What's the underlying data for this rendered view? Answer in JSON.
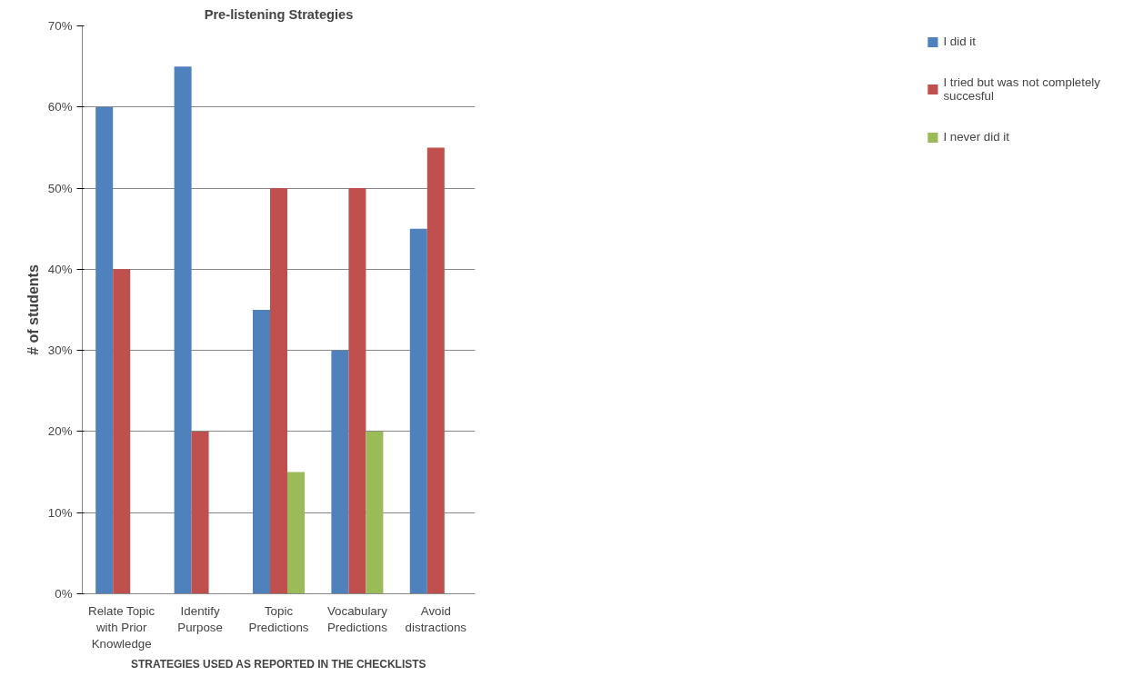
{
  "chart_data": {
    "type": "bar",
    "title": "Pre-listening Strategies",
    "xlabel": "STRATEGIES USED AS REPORTED IN THE CHECKLISTS",
    "ylabel": "# of students",
    "categories": [
      "Relate Topic with Prior Knowledge",
      "Identify Purpose",
      "Topic Predictions",
      "Vocabulary Predictions",
      "Avoid distractions"
    ],
    "series": [
      {
        "name": "I did it",
        "color": "#4f81bd",
        "values": [
          60,
          65,
          35,
          30,
          45
        ]
      },
      {
        "name": "I tried but was not completely succesful",
        "color": "#c0504d",
        "values": [
          40,
          20,
          50,
          50,
          55
        ]
      },
      {
        "name": "I never did it",
        "color": "#9bbb59",
        "values": [
          null,
          null,
          15,
          20,
          null
        ]
      }
    ],
    "ylim": [
      0,
      70
    ],
    "yticks": [
      {
        "value": 0,
        "label": "0%"
      },
      {
        "value": 10,
        "label": "10%"
      },
      {
        "value": 20,
        "label": "20%"
      },
      {
        "value": 30,
        "label": "30%"
      },
      {
        "value": 40,
        "label": "40%"
      },
      {
        "value": 50,
        "label": "50%"
      },
      {
        "value": 60,
        "label": "60%"
      },
      {
        "value": 70,
        "label": "70%"
      }
    ],
    "grid": "y",
    "legend": "right"
  }
}
